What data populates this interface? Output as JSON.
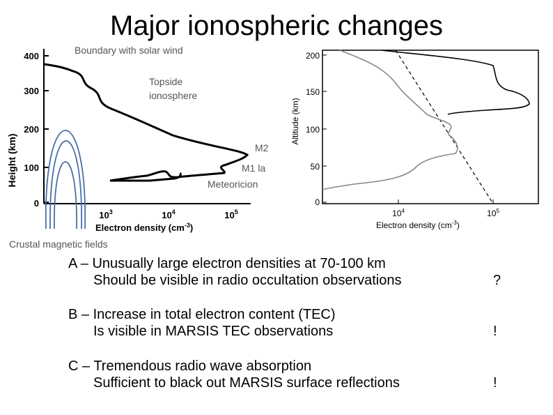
{
  "title": "Major ionospheric changes",
  "left_chart": {
    "annotation_top": "Boundary with solar wind",
    "annotation_topside_1": "Topside",
    "annotation_topside_2": "ionosphere",
    "annotation_m2": "M2",
    "annotation_m1": "M1 la",
    "annotation_meteoric": "Meteoricion",
    "annotation_crustal": "Crustal magnetic fields",
    "ylabel": "Height (km)",
    "xlabel_prefix": "Electron density (cm",
    "xlabel_exp": "-3",
    "xlabel_suffix": ")",
    "yticks": [
      "400",
      "300",
      "200",
      "100",
      "0"
    ],
    "xticks": [
      {
        "base": "10",
        "exp": "3"
      },
      {
        "base": "10",
        "exp": "4"
      },
      {
        "base": "10",
        "exp": "5"
      }
    ]
  },
  "right_chart": {
    "ylabel": "Altitude (km)",
    "xlabel_prefix": "Electron density (cm",
    "xlabel_exp": "-3",
    "xlabel_suffix": ")",
    "yticks": [
      "200",
      "150",
      "100",
      "50",
      "0"
    ],
    "xticks": [
      {
        "base": "10",
        "exp": "4"
      },
      {
        "base": "10",
        "exp": "5"
      }
    ]
  },
  "bullets": [
    {
      "label": "A – Unusually large electron densities at 70-100 km",
      "sub": "Should be visible in radio occultation observations",
      "mark": "?"
    },
    {
      "label": "B – Increase in total electron content (TEC)",
      "sub": "Is visible in MARSIS TEC observations",
      "mark": "!"
    },
    {
      "label": "C – Tremendous radio wave absorption",
      "sub": "Sufficient to black out MARSIS surface reflections",
      "mark": "!"
    }
  ],
  "colors": {
    "text": "#000000",
    "annotation": "#555555",
    "crustal_lines": "#4a6fa5",
    "grey_curve": "#888888"
  }
}
